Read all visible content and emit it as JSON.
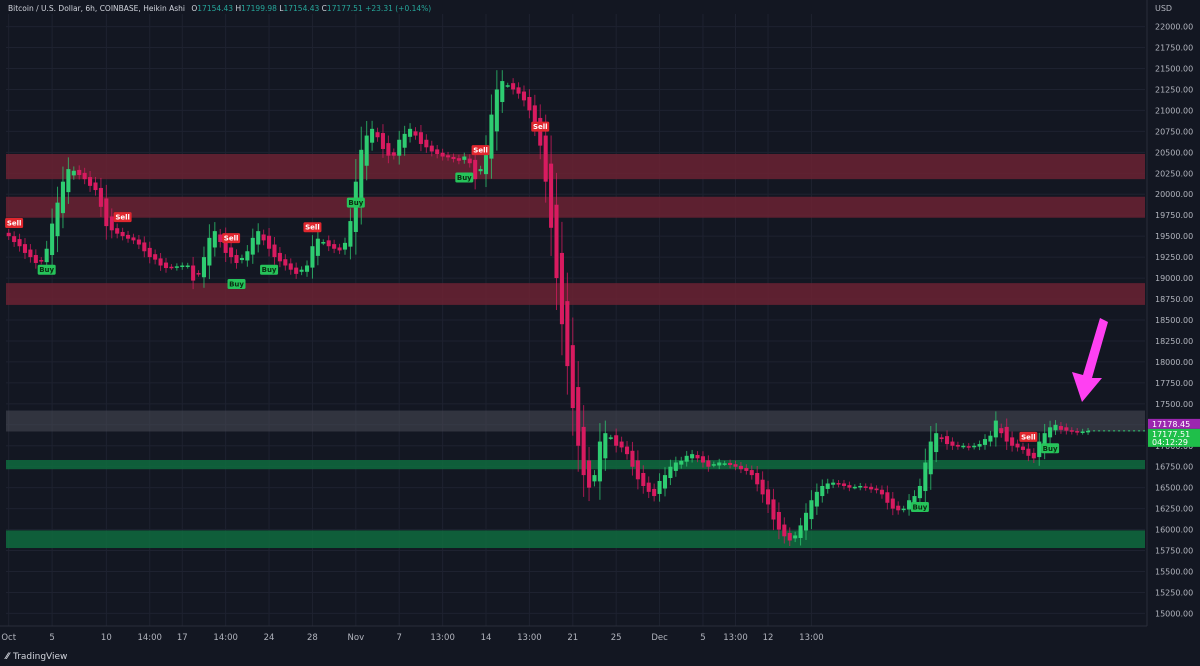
{
  "header": {
    "symbol": "Bitcoin / U.S. Dollar, 6h, COINBASE, Heikin Ashi",
    "o_label": "O",
    "o_value": "17154.43",
    "h_label": "H",
    "h_value": "17199.98",
    "l_label": "L",
    "l_value": "17154.43",
    "c_label": "C",
    "c_value": "17177.51",
    "change": "+23.31 (+0.14%)"
  },
  "footer": {
    "brand": "TradingView",
    "brand_icon": "tradingview-logo-icon"
  },
  "colors": {
    "background": "#131722",
    "up": "#2ecc71",
    "down": "#d81b60",
    "resistance_zone": "#6b2232",
    "support_zone": "#0f6b3e",
    "neutral_zone": "#4a4d57",
    "buy_label": "#26c35a",
    "sell_label": "#e0272e",
    "arrow": "#ff40f2"
  },
  "chart_data": {
    "type": "candlestick",
    "chart_style": "Heikin Ashi",
    "timeframe": "6h",
    "currency_label": "USD",
    "y_ticks": [
      15000,
      15250,
      15500,
      15750,
      16000,
      16250,
      16500,
      16750,
      17000,
      17250,
      17500,
      17750,
      18000,
      18250,
      18500,
      18750,
      19000,
      19250,
      19500,
      19750,
      20000,
      20250,
      20500,
      20750,
      21000,
      21250,
      21500,
      21750,
      22000
    ],
    "y_tick_labels": [
      "15000.00",
      "15250.00",
      "15500.00",
      "15750.00",
      "16000.00",
      "16250.00",
      "16500.00",
      "16750.00",
      "17000.00",
      "17250.00",
      "17500.00",
      "17750.00",
      "18000.00",
      "18250.00",
      "18500.00",
      "18750.00",
      "19000.00",
      "19250.00",
      "19500.00",
      "19750.00",
      "20000.00",
      "20250.00",
      "20500.00",
      "20750.00",
      "21000.00",
      "21250.00",
      "21500.00",
      "21750.00",
      "22000.00"
    ],
    "ylim": [
      14850,
      22150
    ],
    "x_labels": [
      "Oct",
      "5",
      "10",
      "14:00",
      "17",
      "14:00",
      "24",
      "28",
      "Nov",
      "7",
      "13:00",
      "14",
      "13:00",
      "21",
      "25",
      "Dec",
      "5",
      "13:00",
      "12",
      "13:00"
    ],
    "x_label_index": [
      0,
      8,
      18,
      26,
      32,
      40,
      48,
      56,
      64,
      72,
      80,
      88,
      96,
      104,
      112,
      120,
      128,
      134,
      140,
      148
    ],
    "zones": [
      {
        "type": "resistance",
        "from": 20180,
        "to": 20480
      },
      {
        "type": "resistance",
        "from": 19720,
        "to": 19970
      },
      {
        "type": "resistance",
        "from": 18680,
        "to": 18940
      },
      {
        "type": "neutral",
        "from": 17170,
        "to": 17420
      },
      {
        "type": "support",
        "from": 16720,
        "to": 16830
      },
      {
        "type": "support",
        "from": 15780,
        "to": 15990
      }
    ],
    "closes": [
      19500,
      19430,
      19380,
      19300,
      19250,
      19180,
      19200,
      19350,
      19650,
      19900,
      20150,
      20300,
      20280,
      20230,
      20180,
      20100,
      20050,
      19850,
      19620,
      19570,
      19530,
      19500,
      19470,
      19450,
      19400,
      19320,
      19250,
      19220,
      19150,
      19120,
      19130,
      19140,
      19150,
      19150,
      18970,
      19050,
      19250,
      19480,
      19560,
      19430,
      19300,
      19250,
      19180,
      19240,
      19320,
      19480,
      19560,
      19450,
      19350,
      19250,
      19200,
      19150,
      19100,
      19050,
      19100,
      19150,
      19380,
      19470,
      19430,
      19380,
      19350,
      19330,
      19420,
      19680,
      20150,
      20530,
      20700,
      20780,
      20680,
      20540,
      20460,
      20460,
      20650,
      20720,
      20780,
      20700,
      20600,
      20560,
      20510,
      20480,
      20450,
      20440,
      20420,
      20400,
      20450,
      20370,
      20180,
      20300,
      20550,
      20950,
      21250,
      21350,
      21300,
      21250,
      21200,
      21120,
      21000,
      20820,
      20580,
      20150,
      19600,
      19000,
      18450,
      17950,
      17450,
      17000,
      16650,
      16500,
      16650,
      17050,
      17150,
      17100,
      17000,
      16980,
      16900,
      16750,
      16600,
      16520,
      16450,
      16400,
      16580,
      16650,
      16750,
      16800,
      16820,
      16880,
      16900,
      16850,
      16800,
      16750,
      16780,
      16800,
      16790,
      16770,
      16750,
      16720,
      16700,
      16650,
      16540,
      16420,
      16300,
      16120,
      16000,
      15920,
      15870,
      15930,
      16050,
      16200,
      16350,
      16450,
      16520,
      16550,
      16560,
      16540,
      16520,
      16500,
      16510,
      16520,
      16500,
      16480,
      16470,
      16420,
      16320,
      16250,
      16230,
      16250,
      16350,
      16400,
      16520,
      16800,
      17050,
      17150,
      17080,
      17020,
      17000,
      16990,
      17000,
      16980,
      17000,
      17020,
      17080,
      17120,
      17300,
      17150,
      17050,
      17000,
      16980,
      16950,
      16880,
      16850,
      17050,
      17150,
      17220,
      17250,
      17190,
      17180,
      17170,
      17160,
      17170,
      17177.51
    ],
    "current_price_tag": "17178.45",
    "current_price_tag_2": "17177.51",
    "countdown_tag": "04:12:29",
    "signals": [
      {
        "label": "Sell",
        "index": 1,
        "kind": "sell"
      },
      {
        "label": "Buy",
        "index": 7,
        "kind": "buy"
      },
      {
        "label": "Sell",
        "index": 21,
        "kind": "sell"
      },
      {
        "label": "Sell",
        "index": 41,
        "kind": "sell"
      },
      {
        "label": "Buy",
        "index": 42,
        "kind": "buy"
      },
      {
        "label": "Buy",
        "index": 48,
        "kind": "buy"
      },
      {
        "label": "Sell",
        "index": 56,
        "kind": "sell"
      },
      {
        "label": "Buy",
        "index": 64,
        "kind": "buy"
      },
      {
        "label": "Buy",
        "index": 84,
        "kind": "buy"
      },
      {
        "label": "Sell",
        "index": 87,
        "kind": "sell"
      },
      {
        "label": "Sell",
        "index": 98,
        "kind": "sell"
      },
      {
        "label": "Buy",
        "index": 168,
        "kind": "buy"
      },
      {
        "label": "Sell",
        "index": 188,
        "kind": "sell"
      },
      {
        "label": "Buy",
        "index": 192,
        "kind": "buy"
      }
    ]
  }
}
